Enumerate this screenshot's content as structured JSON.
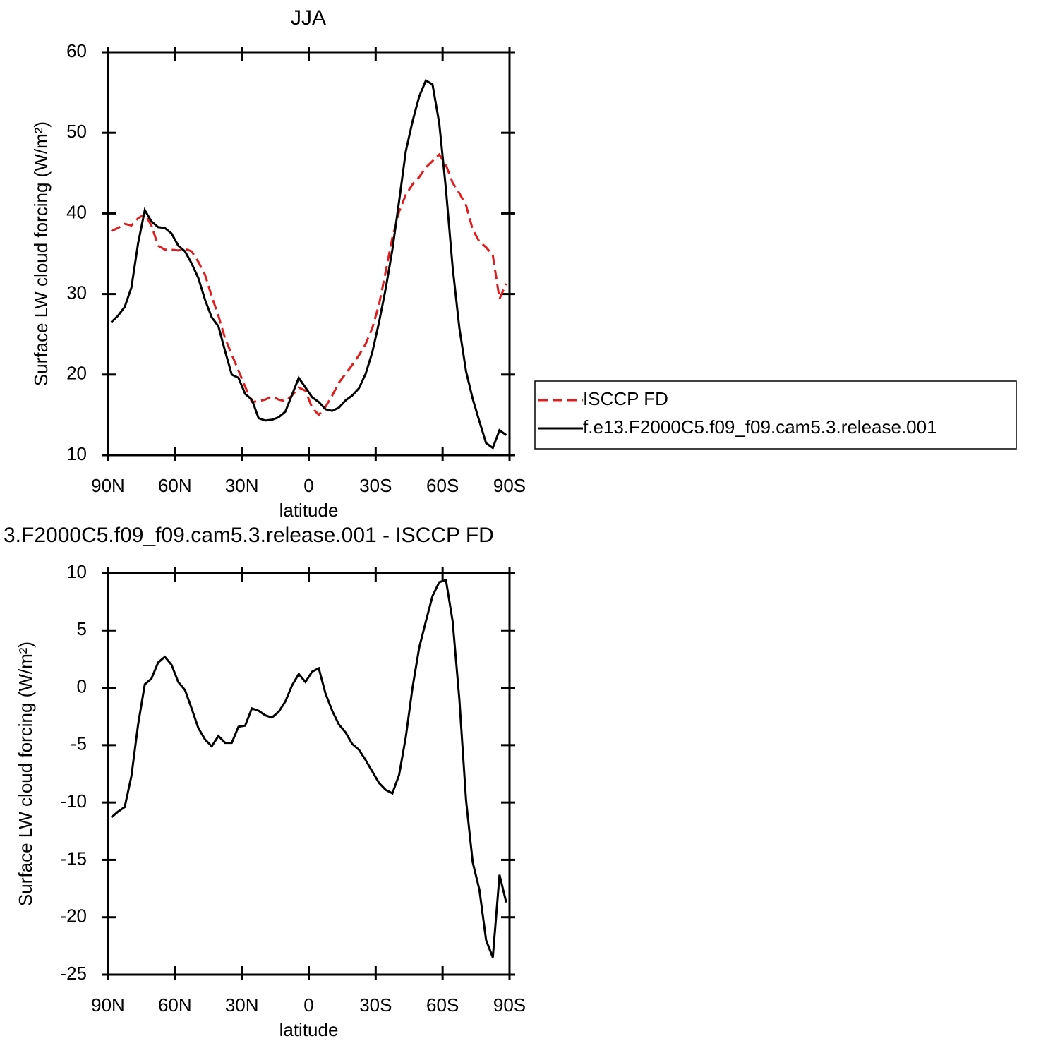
{
  "chart_data": [
    {
      "type": "line",
      "title": "JJA",
      "xlabel": "latitude",
      "ylabel": "Surface LW cloud forcing (W/m²)",
      "x": [
        88.5,
        85.5,
        82.5,
        79.5,
        76.5,
        73.5,
        70.5,
        67.5,
        64.5,
        61.5,
        58.5,
        55.5,
        52.5,
        49.5,
        46.5,
        43.5,
        40.5,
        37.5,
        34.5,
        31.5,
        28.5,
        25.5,
        22.5,
        19.5,
        16.5,
        13.5,
        10.5,
        7.5,
        4.5,
        1.5,
        -1.5,
        -4.5,
        -7.5,
        -10.5,
        -13.5,
        -16.5,
        -19.5,
        -22.5,
        -25.5,
        -28.5,
        -31.5,
        -34.5,
        -37.5,
        -40.5,
        -43.5,
        -46.5,
        -49.5,
        -52.5,
        -55.5,
        -58.5,
        -61.5,
        -64.5,
        -67.5,
        -70.5,
        -73.5,
        -76.5,
        -79.5,
        -82.5,
        -85.5,
        -88.5
      ],
      "series": [
        {
          "name": "ISCCP FD",
          "color": "#e41a1c",
          "linestyle": "dashed",
          "values": [
            37.8,
            38.2,
            38.7,
            38.5,
            39.4,
            39.9,
            38.5,
            36.0,
            35.5,
            35.5,
            35.4,
            35.6,
            35.3,
            34.0,
            32.4,
            29.7,
            27.3,
            24.5,
            22.5,
            20.5,
            18.5,
            16.6,
            16.7,
            16.9,
            17.3,
            16.9,
            16.7,
            17.4,
            18.4,
            18.0,
            15.9,
            15.0,
            16.0,
            17.4,
            19.0,
            20.1,
            21.2,
            22.4,
            23.8,
            25.8,
            28.7,
            32.8,
            37.0,
            40.2,
            42.3,
            43.6,
            44.5,
            45.7,
            46.5,
            47.3,
            46.0,
            43.8,
            42.5,
            41.0,
            38.0,
            36.5,
            35.8,
            34.8,
            29.4,
            31.3
          ]
        },
        {
          "name": "f.e13.F2000C5.f09_f09.cam5.3.release.001",
          "color": "#000000",
          "linestyle": "solid",
          "values": [
            26.5,
            27.3,
            28.4,
            30.8,
            36.3,
            40.4,
            39.0,
            38.3,
            38.2,
            37.5,
            36.0,
            35.3,
            33.8,
            32.0,
            29.3,
            27.1,
            26.0,
            22.9,
            20.0,
            19.6,
            17.6,
            16.9,
            14.6,
            14.3,
            14.4,
            14.7,
            15.4,
            17.5,
            19.6,
            18.4,
            17.2,
            16.6,
            15.7,
            15.5,
            15.9,
            16.8,
            17.4,
            18.3,
            20.1,
            22.8,
            26.5,
            30.7,
            35.5,
            41.5,
            47.7,
            51.4,
            54.5,
            56.5,
            56.0,
            51.2,
            43.0,
            33.3,
            25.8,
            20.4,
            17.0,
            14.2,
            11.5,
            10.9,
            13.1,
            12.5
          ]
        }
      ],
      "xlim": [
        90,
        -90
      ],
      "xticks": [
        {
          "value": 90,
          "label": "90N"
        },
        {
          "value": 60,
          "label": "60N"
        },
        {
          "value": 30,
          "label": "30N"
        },
        0,
        {
          "value": -30,
          "label": "30S"
        },
        {
          "value": -60,
          "label": "60S"
        },
        {
          "value": -90,
          "label": "90S"
        }
      ],
      "ylim": [
        10,
        60
      ],
      "yticks": [
        10,
        20,
        30,
        40,
        50,
        60
      ],
      "legend": "outside-right"
    },
    {
      "type": "line",
      "title": "3.F2000C5.f09_f09.cam5.3.release.001 - ISCCP FD",
      "xlabel": "latitude",
      "ylabel": "Surface LW cloud forcing (W/m²)",
      "x": [
        88.5,
        85.5,
        82.5,
        79.5,
        76.5,
        73.5,
        70.5,
        67.5,
        64.5,
        61.5,
        58.5,
        55.5,
        52.5,
        49.5,
        46.5,
        43.5,
        40.5,
        37.5,
        34.5,
        31.5,
        28.5,
        25.5,
        22.5,
        19.5,
        16.5,
        13.5,
        10.5,
        7.5,
        4.5,
        1.5,
        -1.5,
        -4.5,
        -7.5,
        -10.5,
        -13.5,
        -16.5,
        -19.5,
        -22.5,
        -25.5,
        -28.5,
        -31.5,
        -34.5,
        -37.5,
        -40.5,
        -43.5,
        -46.5,
        -49.5,
        -52.5,
        -55.5,
        -58.5,
        -61.5,
        -64.5,
        -67.5,
        -70.5,
        -73.5,
        -76.5,
        -79.5,
        -82.5,
        -85.5,
        -88.5
      ],
      "series": [
        {
          "color": "#000000",
          "linestyle": "solid",
          "values": [
            -11.3,
            -10.8,
            -10.4,
            -7.7,
            -3.2,
            0.3,
            0.8,
            2.2,
            2.7,
            2.0,
            0.5,
            -0.2,
            -1.8,
            -3.5,
            -4.5,
            -5.1,
            -4.2,
            -4.8,
            -4.8,
            -3.4,
            -3.3,
            -1.8,
            -2.0,
            -2.4,
            -2.6,
            -2.1,
            -1.2,
            0.2,
            1.2,
            0.5,
            1.4,
            1.7,
            -0.5,
            -2.0,
            -3.2,
            -3.9,
            -4.9,
            -5.4,
            -6.3,
            -7.3,
            -8.3,
            -8.9,
            -9.2,
            -7.6,
            -4.3,
            0.0,
            3.5,
            5.8,
            8.0,
            9.2,
            9.4,
            5.8,
            -1.0,
            -9.8,
            -15.2,
            -17.6,
            -22.0,
            -23.5,
            -16.3,
            -18.7
          ]
        }
      ],
      "xlim": [
        90,
        -90
      ],
      "xticks": [
        {
          "value": 90,
          "label": "90N"
        },
        {
          "value": 60,
          "label": "60N"
        },
        {
          "value": 30,
          "label": "30N"
        },
        0,
        {
          "value": -30,
          "label": "30S"
        },
        {
          "value": -60,
          "label": "60S"
        },
        {
          "value": -90,
          "label": "90S"
        }
      ],
      "ylim": [
        -25,
        10
      ],
      "yticks": [
        -25,
        -20,
        -15,
        -10,
        -5,
        0,
        5,
        10
      ]
    }
  ]
}
